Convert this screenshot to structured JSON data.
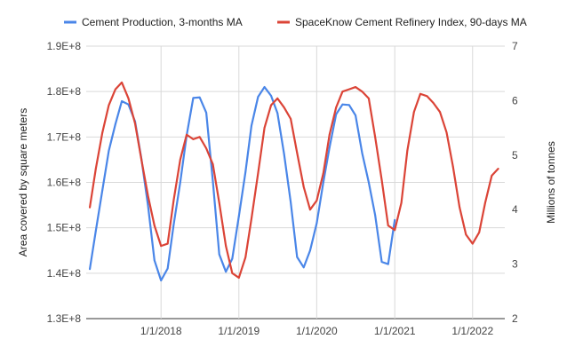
{
  "chart_data": {
    "type": "line",
    "title": "",
    "legend_position": "top",
    "grid": {
      "horizontal": true,
      "vertical": true
    },
    "x_axis": {
      "type": "date",
      "range": [
        "2017-01-15",
        "2022-06-01"
      ],
      "ticks": [
        {
          "date": "2018-01-01",
          "label": "1/1/2018"
        },
        {
          "date": "2019-01-01",
          "label": "1/1/2019"
        },
        {
          "date": "2020-01-01",
          "label": "1/1/2020"
        },
        {
          "date": "2021-01-01",
          "label": "1/1/2021"
        },
        {
          "date": "2022-01-01",
          "label": "1/1/2022"
        }
      ]
    },
    "y_left": {
      "label": "Area covered by square meters",
      "range": [
        130000000,
        190000000
      ],
      "ticks": [
        {
          "value": 130000000,
          "label": "1.3E+8"
        },
        {
          "value": 140000000,
          "label": "1.4E+8"
        },
        {
          "value": 150000000,
          "label": "1.5E+8"
        },
        {
          "value": 160000000,
          "label": "1.6E+8"
        },
        {
          "value": 170000000,
          "label": "1.7E+8"
        },
        {
          "value": 180000000,
          "label": "1.8E+8"
        },
        {
          "value": 190000000,
          "label": "1.9E+8"
        }
      ]
    },
    "y_right": {
      "label": "Millions of tonnes",
      "range": [
        2,
        7
      ],
      "ticks": [
        {
          "value": 2,
          "label": "2"
        },
        {
          "value": 3,
          "label": "3"
        },
        {
          "value": 4,
          "label": "4"
        },
        {
          "value": 5,
          "label": "5"
        },
        {
          "value": 6,
          "label": "6"
        },
        {
          "value": 7,
          "label": "7"
        }
      ]
    },
    "series": [
      {
        "name": "Cement Production, 3-months MA",
        "color": "#4a86e8",
        "axis": "right",
        "points": [
          [
            "2017-02-01",
            2.91
          ],
          [
            "2017-03-01",
            3.61
          ],
          [
            "2017-04-01",
            4.36
          ],
          [
            "2017-05-01",
            5.08
          ],
          [
            "2017-06-01",
            5.57
          ],
          [
            "2017-07-01",
            5.99
          ],
          [
            "2017-08-01",
            5.93
          ],
          [
            "2017-09-01",
            5.62
          ],
          [
            "2017-10-01",
            4.93
          ],
          [
            "2017-11-01",
            4.07
          ],
          [
            "2017-12-01",
            3.07
          ],
          [
            "2018-01-01",
            2.7
          ],
          [
            "2018-02-01",
            2.92
          ],
          [
            "2018-03-01",
            3.72
          ],
          [
            "2018-04-01",
            4.5
          ],
          [
            "2018-05-01",
            5.36
          ],
          [
            "2018-06-01",
            6.05
          ],
          [
            "2018-07-01",
            6.06
          ],
          [
            "2018-08-01",
            5.78
          ],
          [
            "2018-09-01",
            4.52
          ],
          [
            "2018-10-01",
            3.18
          ],
          [
            "2018-11-01",
            2.86
          ],
          [
            "2018-12-01",
            3.1
          ],
          [
            "2019-01-01",
            3.88
          ],
          [
            "2019-02-01",
            4.69
          ],
          [
            "2019-03-01",
            5.54
          ],
          [
            "2019-04-01",
            6.07
          ],
          [
            "2019-05-01",
            6.25
          ],
          [
            "2019-06-01",
            6.09
          ],
          [
            "2019-07-01",
            5.77
          ],
          [
            "2019-08-01",
            5.02
          ],
          [
            "2019-09-01",
            4.14
          ],
          [
            "2019-10-01",
            3.13
          ],
          [
            "2019-11-01",
            2.94
          ],
          [
            "2019-12-01",
            3.25
          ],
          [
            "2020-01-01",
            3.75
          ],
          [
            "2020-02-01",
            4.5
          ],
          [
            "2020-03-01",
            5.14
          ],
          [
            "2020-04-01",
            5.75
          ],
          [
            "2020-05-01",
            5.93
          ],
          [
            "2020-06-01",
            5.92
          ],
          [
            "2020-07-01",
            5.73
          ],
          [
            "2020-08-01",
            5.04
          ],
          [
            "2020-09-01",
            4.5
          ],
          [
            "2020-10-01",
            3.9
          ],
          [
            "2020-11-01",
            3.04
          ],
          [
            "2020-12-01",
            3.0
          ],
          [
            "2021-01-01",
            3.81
          ]
        ]
      },
      {
        "name": "SpaceKnow Cement Refinery Index, 90-days MA",
        "color": "#db4437",
        "axis": "left",
        "points": [
          [
            "2017-02-01",
            154500000
          ],
          [
            "2017-03-01",
            163000000
          ],
          [
            "2017-04-01",
            171000000
          ],
          [
            "2017-05-01",
            177000000
          ],
          [
            "2017-06-01",
            180500000
          ],
          [
            "2017-07-01",
            182000000
          ],
          [
            "2017-08-01",
            178500000
          ],
          [
            "2017-09-01",
            173000000
          ],
          [
            "2017-10-01",
            165000000
          ],
          [
            "2017-11-01",
            157000000
          ],
          [
            "2017-12-01",
            150500000
          ],
          [
            "2018-01-01",
            146000000
          ],
          [
            "2018-02-01",
            146500000
          ],
          [
            "2018-03-01",
            156000000
          ],
          [
            "2018-04-01",
            165000000
          ],
          [
            "2018-05-01",
            170500000
          ],
          [
            "2018-06-01",
            169500000
          ],
          [
            "2018-07-01",
            170000000
          ],
          [
            "2018-08-01",
            167500000
          ],
          [
            "2018-09-01",
            164000000
          ],
          [
            "2018-10-01",
            155500000
          ],
          [
            "2018-11-01",
            146000000
          ],
          [
            "2018-12-01",
            140000000
          ],
          [
            "2019-01-01",
            139000000
          ],
          [
            "2019-02-01",
            143500000
          ],
          [
            "2019-03-01",
            152000000
          ],
          [
            "2019-04-01",
            162000000
          ],
          [
            "2019-05-01",
            172000000
          ],
          [
            "2019-06-01",
            177000000
          ],
          [
            "2019-07-01",
            178500000
          ],
          [
            "2019-08-01",
            176500000
          ],
          [
            "2019-09-01",
            174000000
          ],
          [
            "2019-10-01",
            166500000
          ],
          [
            "2019-11-01",
            159000000
          ],
          [
            "2019-12-01",
            154000000
          ],
          [
            "2020-01-01",
            156000000
          ],
          [
            "2020-02-01",
            162000000
          ],
          [
            "2020-03-01",
            170500000
          ],
          [
            "2020-04-01",
            176500000
          ],
          [
            "2020-05-01",
            180000000
          ],
          [
            "2020-06-01",
            180500000
          ],
          [
            "2020-07-01",
            181000000
          ],
          [
            "2020-08-01",
            180000000
          ],
          [
            "2020-09-01",
            178500000
          ],
          [
            "2020-10-01",
            170000000
          ],
          [
            "2020-11-01",
            160500000
          ],
          [
            "2020-12-01",
            150500000
          ],
          [
            "2021-01-01",
            149500000
          ],
          [
            "2021-02-01",
            155500000
          ],
          [
            "2021-03-01",
            167000000
          ],
          [
            "2021-04-01",
            175500000
          ],
          [
            "2021-05-01",
            179500000
          ],
          [
            "2021-06-01",
            179000000
          ],
          [
            "2021-07-01",
            177500000
          ],
          [
            "2021-08-01",
            175500000
          ],
          [
            "2021-09-01",
            171000000
          ],
          [
            "2021-10-01",
            163500000
          ],
          [
            "2021-11-01",
            154500000
          ],
          [
            "2021-12-01",
            148500000
          ],
          [
            "2022-01-01",
            146500000
          ],
          [
            "2022-02-01",
            149000000
          ],
          [
            "2022-03-01",
            155500000
          ],
          [
            "2022-04-01",
            161500000
          ],
          [
            "2022-05-01",
            163000000
          ]
        ]
      }
    ]
  }
}
